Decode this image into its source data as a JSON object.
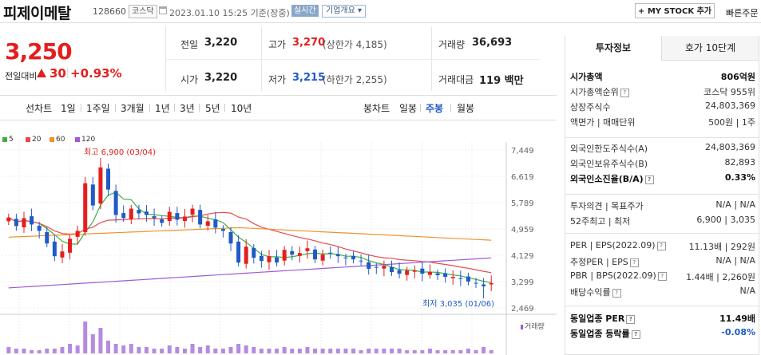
{
  "header": {
    "name": "피제이메탈",
    "code": "128660",
    "market": "코스닥",
    "datetime": "2023.01.10 15:25 기준(장중)",
    "live": "실시간",
    "company_info": "기업개요",
    "mystock": "+ MY STOCK 추가",
    "quick_order": "빠른주문"
  },
  "quote": {
    "price": "3,250",
    "change_label": "전일대비",
    "change": "30",
    "change_pct": "+0.93%",
    "prev_close_label": "전일",
    "prev_close": "3,220",
    "high_label": "고가",
    "high": "3,270",
    "upper_limit": "(상한가 4,185)",
    "volume_label": "거래량",
    "volume": "36,693",
    "open_label": "시가",
    "open": "3,220",
    "low_label": "저가",
    "low": "3,215",
    "lower_limit": "(하한가 2,255)",
    "amount_label": "거래대금",
    "amount": "119 백만"
  },
  "chart_tabs": {
    "line_label": "선차트",
    "line": [
      "1일",
      "1주일",
      "3개월",
      "1년",
      "3년",
      "5년",
      "10년"
    ],
    "candle_label": "봉차트",
    "candle": [
      "일봉",
      "주봉",
      "월봉"
    ],
    "active": "주봉"
  },
  "chart_data": {
    "type": "candlestick",
    "legend": [
      {
        "name": "5",
        "color": "#3cb043"
      },
      {
        "name": "20",
        "color": "#e84a4a"
      },
      {
        "name": "60",
        "color": "#f0922b"
      },
      {
        "name": "120",
        "color": "#9b5bd6"
      }
    ],
    "y_ticks": [
      "7,449",
      "6,619",
      "5,789",
      "4,959",
      "4,129",
      "3,299",
      "2,469"
    ],
    "ylim": [
      2469,
      7449
    ],
    "max_annotation": "최고 6,900 (03/04)",
    "min_annotation": "최저 3,035 (01/06)",
    "volume_label": "거래량"
  },
  "invest": {
    "tabs": [
      "투자정보",
      "호가 10단계"
    ],
    "rows1": [
      {
        "k": "시가총액",
        "v": "806억원"
      },
      {
        "k": "시가총액순위",
        "v": "코스닥 955위"
      },
      {
        "k": "상장주식수",
        "v": "24,803,369"
      },
      {
        "k": "액면가 | 매매단위",
        "v": "500원 | 1주"
      }
    ],
    "rows2": [
      {
        "k": "외국인한도주식수(A)",
        "v": "24,803,369"
      },
      {
        "k": "외국인보유주식수(B)",
        "v": "82,893"
      },
      {
        "k": "외국인소진율(B/A)",
        "v": "0.33%"
      }
    ],
    "rows3": [
      {
        "k": "투자의견 | 목표주가",
        "v": "N/A | N/A"
      },
      {
        "k": "52주최고 | 최저",
        "v": "6,900 | 3,035"
      }
    ],
    "rows4": [
      {
        "k": "PER | EPS(2022.09)",
        "v": "11.13배 | 292원"
      },
      {
        "k": "추정PER | EPS",
        "v": "N/A | N/A"
      },
      {
        "k": "PBR | BPS(2022.09)",
        "v": "1.44배 | 2,260원"
      },
      {
        "k": "배당수익률",
        "v": "N/A"
      }
    ],
    "rows5": [
      {
        "k": "동일업종 PER",
        "v": "11.49배"
      },
      {
        "k": "동일업종 등락률",
        "v": "-0.08%"
      }
    ]
  }
}
